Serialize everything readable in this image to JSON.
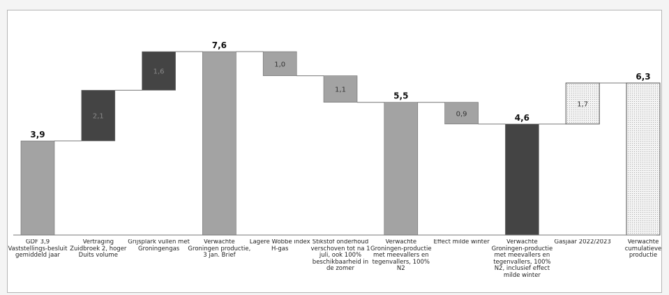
{
  "chart_data": {
    "type": "bar",
    "subtype": "waterfall",
    "title": "",
    "xlabel": "",
    "ylabel": "",
    "ylim": [
      0,
      8.6
    ],
    "grid": false,
    "legend": "none",
    "bars": [
      {
        "label": "GDF 3,9 Vaststellings-besluit gemiddeld jaar",
        "kind": "total",
        "start": 0,
        "end": 3.9,
        "text": "3,9",
        "fill": "#a3a3a3"
      },
      {
        "label": "Vertraging Zuidbroek 2, hoger Duits volume",
        "kind": "delta",
        "start": 3.9,
        "end": 6.0,
        "text": "2,1",
        "fill": "#444444"
      },
      {
        "label": "Grijsplark vullen met Groningengas",
        "kind": "delta",
        "start": 6.0,
        "end": 7.6,
        "text": "1,6",
        "fill": "#444444"
      },
      {
        "label": "Verwachte Groningen productie, 3 jan. Brief",
        "kind": "total",
        "start": 0,
        "end": 7.6,
        "text": "7,6",
        "fill": "#a3a3a3"
      },
      {
        "label": "Lagere Wobbe index H-gas",
        "kind": "delta",
        "start": 7.6,
        "end": 6.6,
        "text": "1,0",
        "fill": "#a3a3a3"
      },
      {
        "label": "Stikstof onderhoud verschoven tot na 1 juli, ook 100% beschikbaarheid in de zomer",
        "kind": "delta",
        "start": 6.6,
        "end": 5.5,
        "text": "1,1",
        "fill": "#a3a3a3"
      },
      {
        "label": "Verwachte Groningen-productie met meevallers en tegenvallers, 100% N2",
        "kind": "total",
        "start": 0,
        "end": 5.5,
        "text": "5,5",
        "fill": "#a3a3a3"
      },
      {
        "label": "Effect milde winter",
        "kind": "delta",
        "start": 5.5,
        "end": 4.6,
        "text": "0,9",
        "fill": "#a3a3a3"
      },
      {
        "label": "Verwachte Groningen-productie met meevallers en tegenvallers, 100% N2, inclusief effect milde winter",
        "kind": "total",
        "start": 0,
        "end": 4.6,
        "text": "4,6",
        "fill": "#444444"
      },
      {
        "label": "Gasjaar 2022/2023",
        "kind": "delta",
        "start": 4.6,
        "end": 6.3,
        "text": "1,7",
        "fill": "dotted"
      },
      {
        "label": "Verwachte cumulatieve productie",
        "kind": "total",
        "start": 0,
        "end": 6.3,
        "text": "6,3",
        "fill": "dotted"
      }
    ]
  }
}
